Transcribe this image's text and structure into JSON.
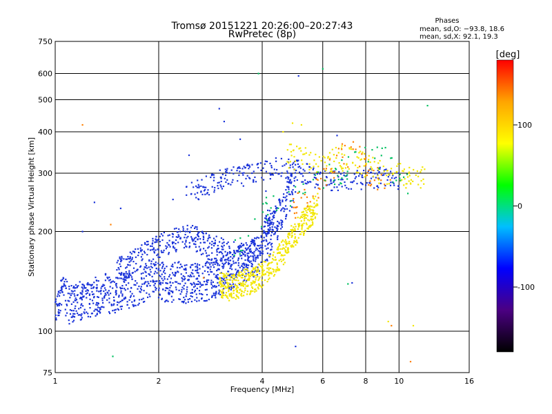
{
  "title": "Tromsø 20151221 20:26:00–20:27:43",
  "subtitle": "RwPretec (8p)",
  "phases_box": {
    "heading": "Phases",
    "line_o": "mean, sd,O: −93.8, 18.6",
    "line_x": "mean, sd,X:  92.1, 19.3"
  },
  "chart_data": {
    "type": "scatter",
    "xlabel": "Frequency [MHz]",
    "ylabel": "Stationary phase Virtual Height [km]",
    "x_scale": "log",
    "y_scale": "log",
    "xlim": [
      1,
      16
    ],
    "ylim": [
      75,
      750
    ],
    "x_ticks": [
      1,
      2,
      4,
      6,
      8,
      10,
      16
    ],
    "y_ticks": [
      75,
      100,
      200,
      300,
      400,
      500,
      600,
      750
    ],
    "grid": true,
    "colorbar": {
      "label": "[deg]",
      "ticks": [
        100,
        0,
        -100
      ],
      "range": [
        -180,
        180
      ],
      "colors": [
        "#000000",
        "#4b0082",
        "#0000ff",
        "#00bfff",
        "#00ff00",
        "#ffff00",
        "#ffa500",
        "#ff0000"
      ]
    },
    "series": [
      {
        "role": "O-mode (blue, ≈ −94 deg)",
        "color": "#1a33d9",
        "trace": [
          [
            1.0,
            115
          ],
          [
            1.05,
            122
          ],
          [
            1.1,
            113
          ],
          [
            1.2,
            117
          ],
          [
            1.3,
            119
          ],
          [
            1.4,
            123
          ],
          [
            1.5,
            120
          ],
          [
            1.6,
            125
          ],
          [
            1.7,
            128
          ],
          [
            1.8,
            130
          ],
          [
            1.9,
            133
          ],
          [
            2.0,
            135
          ],
          [
            2.1,
            130
          ],
          [
            2.2,
            132
          ],
          [
            2.3,
            133
          ],
          [
            2.4,
            130
          ],
          [
            2.5,
            132
          ],
          [
            2.7,
            132
          ],
          [
            2.9,
            135
          ],
          [
            3.1,
            140
          ],
          [
            3.3,
            145
          ],
          [
            3.5,
            150
          ],
          [
            3.8,
            155
          ],
          [
            4.0,
            165
          ],
          [
            4.2,
            180
          ],
          [
            4.4,
            200
          ],
          [
            4.6,
            220
          ],
          [
            4.8,
            245
          ],
          [
            5.0,
            270
          ]
        ],
        "upper_trace": [
          [
            1.5,
            150
          ],
          [
            1.7,
            158
          ],
          [
            1.9,
            170
          ],
          [
            2.1,
            180
          ],
          [
            2.3,
            185
          ],
          [
            2.5,
            188
          ],
          [
            2.8,
            175
          ],
          [
            3.0,
            172
          ],
          [
            3.3,
            168
          ],
          [
            3.6,
            165
          ],
          [
            3.9,
            175
          ],
          [
            4.1,
            200
          ],
          [
            4.3,
            230
          ]
        ],
        "f2_trace": [
          [
            2.4,
            260
          ],
          [
            2.6,
            262
          ],
          [
            2.8,
            270
          ],
          [
            3.0,
            280
          ],
          [
            3.3,
            285
          ],
          [
            3.6,
            290
          ],
          [
            4.0,
            300
          ],
          [
            4.5,
            305
          ],
          [
            5.0,
            300
          ],
          [
            5.5,
            290
          ],
          [
            6.0,
            280
          ],
          [
            7.0,
            275
          ],
          [
            8.0,
            280
          ],
          [
            9.0,
            285
          ],
          [
            10.0,
            280
          ]
        ],
        "isolated": [
          [
            1.2,
            200
          ],
          [
            1.3,
            245
          ],
          [
            1.55,
            235
          ],
          [
            2.2,
            250
          ],
          [
            2.45,
            340
          ],
          [
            3.0,
            470
          ],
          [
            3.1,
            430
          ],
          [
            3.45,
            380
          ],
          [
            4.1,
            265
          ],
          [
            5.1,
            590
          ],
          [
            5.0,
            90
          ],
          [
            6.6,
            390
          ],
          [
            7.3,
            140
          ]
        ]
      },
      {
        "role": "X-mode (yellow, ≈ 92 deg)",
        "color": "#f2e600",
        "trace": [
          [
            3.0,
            137
          ],
          [
            3.2,
            133
          ],
          [
            3.4,
            135
          ],
          [
            3.6,
            138
          ],
          [
            3.8,
            140
          ],
          [
            4.0,
            145
          ],
          [
            4.2,
            152
          ],
          [
            4.4,
            160
          ],
          [
            4.6,
            170
          ],
          [
            4.8,
            182
          ],
          [
            5.0,
            195
          ],
          [
            5.2,
            205
          ],
          [
            5.4,
            215
          ],
          [
            5.6,
            225
          ],
          [
            5.8,
            235
          ]
        ],
        "upper_trace": [
          [
            4.7,
            330
          ],
          [
            5.0,
            325
          ],
          [
            5.3,
            320
          ],
          [
            5.6,
            318
          ],
          [
            6.0,
            320
          ],
          [
            6.5,
            322
          ],
          [
            7.0,
            325
          ],
          [
            7.5,
            315
          ],
          [
            8.5,
            300
          ],
          [
            9.5,
            290
          ],
          [
            11.0,
            285
          ],
          [
            12.0,
            280
          ]
        ],
        "isolated": [
          [
            4.6,
            400
          ],
          [
            4.9,
            425
          ],
          [
            5.2,
            420
          ],
          [
            9.3,
            107
          ],
          [
            11.0,
            104
          ],
          [
            10.8,
            280
          ]
        ]
      },
      {
        "role": "orange/red (≈ 120–180 deg)",
        "color": "#ff7f00",
        "trace": [
          [
            4.9,
            225
          ],
          [
            5.1,
            235
          ],
          [
            5.3,
            245
          ],
          [
            5.5,
            255
          ],
          [
            5.7,
            265
          ],
          [
            6.8,
            330
          ],
          [
            7.6,
            335
          ],
          [
            8.0,
            300
          ],
          [
            8.8,
            280
          ],
          [
            9.5,
            270
          ]
        ],
        "isolated": [
          [
            1.2,
            420
          ],
          [
            1.45,
            210
          ],
          [
            9.5,
            104
          ],
          [
            10.8,
            81
          ],
          [
            2.7,
            145
          ]
        ]
      },
      {
        "role": "green/cyan (≈ 0–50 deg)",
        "color": "#00c060",
        "trace": [
          [
            3.3,
            180
          ],
          [
            3.6,
            178
          ],
          [
            4.2,
            240
          ],
          [
            8.2,
            335
          ],
          [
            9.0,
            330
          ],
          [
            9.8,
            290
          ],
          [
            10.8,
            270
          ]
        ],
        "isolated": [
          [
            3.9,
            600
          ],
          [
            6.0,
            620
          ],
          [
            12.1,
            480
          ],
          [
            1.47,
            84
          ],
          [
            7.1,
            139
          ]
        ]
      }
    ]
  }
}
